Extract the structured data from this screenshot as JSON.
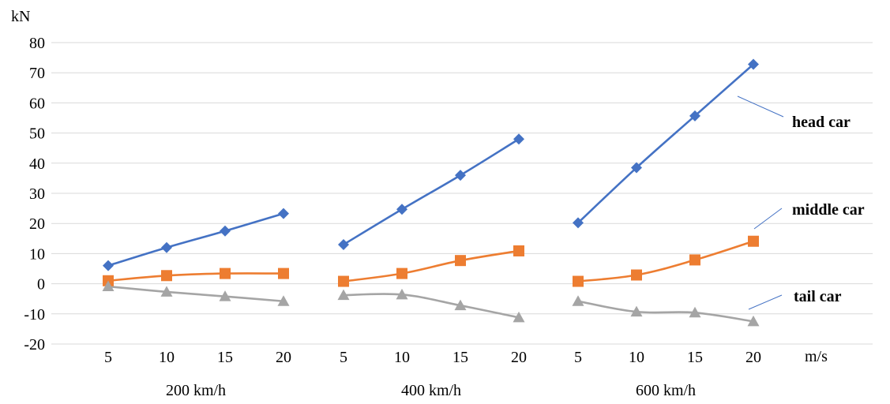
{
  "chart_data": {
    "type": "line",
    "title": "",
    "ylabel": "kN",
    "xlabel": "m/s",
    "ylim": [
      -20,
      80
    ],
    "yticks": [
      -20,
      -10,
      0,
      10,
      20,
      30,
      40,
      50,
      60,
      70,
      80
    ],
    "grid": true,
    "groups": [
      {
        "label": "200 km/h",
        "x": [
          5,
          10,
          15,
          20
        ]
      },
      {
        "label": "400 km/h",
        "x": [
          5,
          10,
          15,
          20
        ]
      },
      {
        "label": "600 km/h",
        "x": [
          5,
          10,
          15,
          20
        ]
      }
    ],
    "series": [
      {
        "name": "head car",
        "color": "#4472c4",
        "marker": "diamond",
        "values": [
          [
            6,
            12,
            17.5,
            23.3
          ],
          [
            13,
            24.7,
            36,
            48
          ],
          [
            20.2,
            38.5,
            55.7,
            72.8
          ]
        ]
      },
      {
        "name": "middle car",
        "color": "#ed7d31",
        "marker": "square",
        "values": [
          [
            1,
            2.7,
            3.4,
            3.4
          ],
          [
            0.8,
            3.4,
            7.7,
            10.9
          ],
          [
            0.8,
            2.9,
            7.9,
            14.1
          ]
        ]
      },
      {
        "name": "tail car",
        "color": "#a5a5a5",
        "marker": "triangle",
        "values": [
          [
            -0.9,
            -2.7,
            -4.2,
            -5.8
          ],
          [
            -3.8,
            -3.6,
            -7.2,
            -11.2
          ],
          [
            -5.8,
            -9.3,
            -9.6,
            -12.5
          ]
        ]
      }
    ]
  }
}
